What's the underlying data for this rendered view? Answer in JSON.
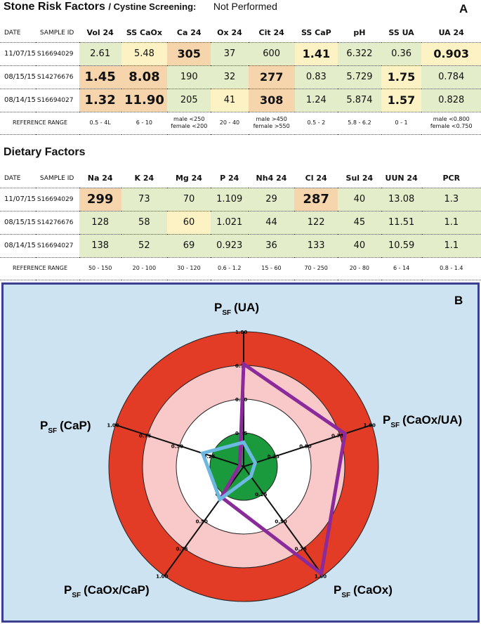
{
  "stone": {
    "title": "Stone Risk Factors",
    "subtitle": "/ Cystine Screening:",
    "cystine_value": "Not Performed",
    "panel": "A",
    "columns": [
      "DATE",
      "SAMPLE ID",
      "Vol 24",
      "SS CaOx",
      "Ca 24",
      "Ox 24",
      "Cit 24",
      "SS CaP",
      "pH",
      "SS UA",
      "UA 24"
    ],
    "rows": [
      {
        "date": "11/07/15",
        "sample": "S16694029",
        "cells": [
          "2.61",
          "5.48",
          "305",
          "37",
          "600",
          "1.41",
          "6.322",
          "0.36",
          "0.903"
        ]
      },
      {
        "date": "08/15/15",
        "sample": "S14276676",
        "cells": [
          "1.45",
          "8.08",
          "190",
          "32",
          "277",
          "0.83",
          "5.729",
          "1.75",
          "0.784"
        ]
      },
      {
        "date": "08/14/15",
        "sample": "S16694027",
        "cells": [
          "1.32",
          "11.90",
          "205",
          "41",
          "308",
          "1.24",
          "5.874",
          "1.57",
          "0.828"
        ]
      }
    ],
    "ref_label": "REFERENCE RANGE",
    "ref": [
      [
        "0.5 - 4L"
      ],
      [
        "6 - 10"
      ],
      [
        "male <250",
        "female <200"
      ],
      [
        "20 - 40"
      ],
      [
        "male >450",
        "female >550"
      ],
      [
        "0.5 - 2"
      ],
      [
        "5.8 - 6.2"
      ],
      [
        "0 - 1"
      ],
      [
        "male <0.800",
        "female <0.750"
      ]
    ]
  },
  "diet": {
    "title": "Dietary Factors",
    "columns": [
      "DATE",
      "SAMPLE ID",
      "Na 24",
      "K 24",
      "Mg 24",
      "P 24",
      "Nh4 24",
      "Cl 24",
      "Sul 24",
      "UUN 24",
      "PCR"
    ],
    "rows": [
      {
        "date": "11/07/15",
        "sample": "S16694029",
        "cells": [
          "299",
          "73",
          "70",
          "1.109",
          "29",
          "287",
          "40",
          "13.08",
          "1.3"
        ]
      },
      {
        "date": "08/15/15",
        "sample": "S14276676",
        "cells": [
          "128",
          "58",
          "60",
          "1.021",
          "44",
          "122",
          "45",
          "11.51",
          "1.1"
        ]
      },
      {
        "date": "08/14/15",
        "sample": "S16694027",
        "cells": [
          "138",
          "52",
          "69",
          "0.923",
          "36",
          "133",
          "40",
          "10.59",
          "1.1"
        ]
      }
    ],
    "ref_label": "REFERENCE RANGE",
    "ref": [
      "50 - 150",
      "20 - 100",
      "30 - 120",
      "0.6 - 1.2",
      "15 - 60",
      "70 - 250",
      "20 - 80",
      "6 - 14",
      "0.8 - 1.4"
    ]
  },
  "colors": {
    "normal": "#e3edc9",
    "borderline": "#fdf2c4",
    "abnormal": "#f6d4ac",
    "ring_outer": "#e23b26",
    "ring_mid": "#f9c9c9",
    "ring_inner": "#ffffff",
    "core": "#1a9a3c",
    "series_purple": "#8b2a9b",
    "series_blue": "#6cb8e0",
    "panel_bg": "#cde3f1",
    "panel_border": "#3b3f8f"
  },
  "stone_cell_colors": [
    [
      "g",
      "y",
      "o",
      "g",
      "g",
      "y",
      "g",
      "g",
      "y"
    ],
    [
      "o",
      "o",
      "g",
      "g",
      "o",
      "g",
      "g",
      "y",
      "g"
    ],
    [
      "o",
      "o",
      "g",
      "y",
      "o",
      "g",
      "g",
      "y",
      "g"
    ]
  ],
  "stone_cell_emph": [
    [
      0,
      0,
      1,
      0,
      0,
      1,
      0,
      0,
      1
    ],
    [
      2,
      2,
      0,
      0,
      1,
      0,
      0,
      1,
      0
    ],
    [
      2,
      2,
      0,
      0,
      1,
      0,
      0,
      1,
      0
    ]
  ],
  "diet_cell_colors": [
    [
      "o",
      "g",
      "g",
      "g",
      "g",
      "o",
      "g",
      "g",
      "g"
    ],
    [
      "g",
      "g",
      "y",
      "g",
      "g",
      "g",
      "g",
      "g",
      "g"
    ],
    [
      "g",
      "g",
      "g",
      "g",
      "g",
      "g",
      "g",
      "g",
      "g"
    ]
  ],
  "diet_cell_emph": [
    [
      2,
      0,
      0,
      0,
      0,
      2,
      0,
      0,
      0
    ],
    [
      0,
      0,
      0,
      0,
      0,
      0,
      0,
      0,
      0
    ],
    [
      0,
      0,
      0,
      0,
      0,
      0,
      0,
      0,
      0
    ]
  ],
  "radar": {
    "panel": "B",
    "axes": [
      {
        "pre": "P",
        "sub": "SF",
        "name": "(UA)"
      },
      {
        "pre": "P",
        "sub": "SF",
        "name": "(CaOx/UA)"
      },
      {
        "pre": "P",
        "sub": "SF",
        "name": "(CaOx)"
      },
      {
        "pre": "P",
        "sub": "SF",
        "name": "(CaOx/CaP)"
      },
      {
        "pre": "P",
        "sub": "SF",
        "name": "(CaP)"
      }
    ],
    "ring_levels": [
      0.25,
      0.5,
      0.75,
      1.0
    ],
    "ring_labels": [
      "0.25",
      "0.50",
      "0.75",
      "1.00"
    ],
    "series": [
      {
        "values": [
          0.76,
          0.79,
          0.98,
          0.28,
          0.03
        ]
      },
      {
        "values": [
          0.18,
          0.09,
          0.09,
          0.3,
          0.32
        ]
      }
    ]
  }
}
